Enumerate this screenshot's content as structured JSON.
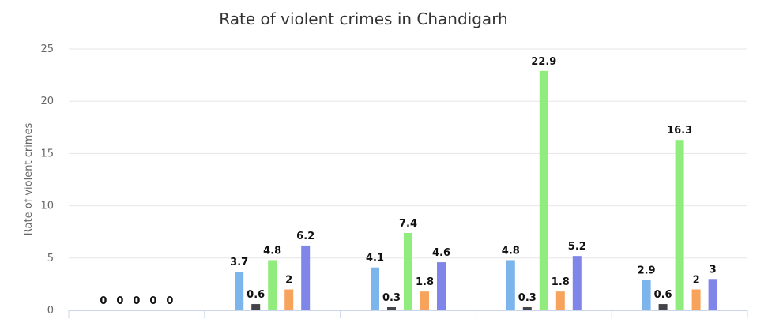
{
  "chart_data": {
    "type": "bar",
    "title": "Rate of violent crimes in Chandigarh",
    "xlabel": "",
    "ylabel": "Rate of violent crimes",
    "ylim": [
      0,
      25
    ],
    "yticks": [
      "0",
      "5",
      "10",
      "15",
      "20",
      "25"
    ],
    "categories": [
      "",
      "",
      "",
      "",
      ""
    ],
    "grid": true,
    "legend": "none",
    "series": [
      {
        "color": "#7cb5ec",
        "values": [
          0,
          3.7,
          4.1,
          4.8,
          2.9
        ],
        "labels": [
          "0",
          "3.7",
          "4.1",
          "4.8",
          "2.9"
        ]
      },
      {
        "color": "#434348",
        "values": [
          0,
          0.6,
          0.3,
          0.3,
          0.6
        ],
        "labels": [
          "0",
          "0.6",
          "0.3",
          "0.3",
          "0.6"
        ]
      },
      {
        "color": "#90ed7d",
        "values": [
          0,
          4.8,
          7.4,
          22.9,
          16.3
        ],
        "labels": [
          "0",
          "4.8",
          "7.4",
          "22.9",
          "16.3"
        ]
      },
      {
        "color": "#f7a35c",
        "values": [
          0,
          2,
          1.8,
          1.8,
          2
        ],
        "labels": [
          "0",
          "2",
          "1.8",
          "1.8",
          "2"
        ]
      },
      {
        "color": "#8085e9",
        "values": [
          0,
          6.2,
          4.6,
          5.2,
          3
        ],
        "labels": [
          "0",
          "6.2",
          "4.6",
          "5.2",
          "3"
        ]
      }
    ]
  }
}
